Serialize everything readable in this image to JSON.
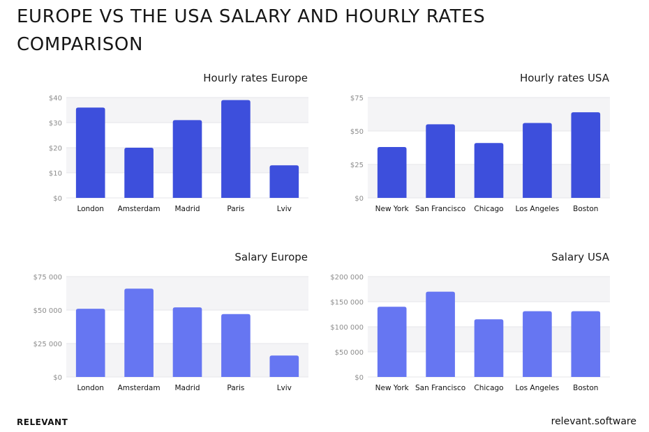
{
  "page": {
    "title": "EUROPE VS THE USA SALARY AND HOURLY RATES COMPARISON"
  },
  "footer": {
    "brand": "RELEVANT",
    "site": "relevant.software"
  },
  "colors": {
    "hourly_bar": "#3d4fdc",
    "salary_bar": "#6676f2",
    "band": "#f4f4f6",
    "gridline": "#e6e6ea",
    "tick_text": "#8c8c8c",
    "category_text": "#111111"
  },
  "chart_data": [
    {
      "type": "bar",
      "title": "Hourly rates Europe",
      "categories": [
        "London",
        "Amsterdam",
        "Madrid",
        "Paris",
        "Lviv"
      ],
      "values": [
        36,
        20,
        31,
        39,
        13
      ],
      "ylim": [
        0,
        40
      ],
      "yticks": [
        0,
        10,
        20,
        30,
        40
      ],
      "ytick_labels": [
        "$0",
        "$10",
        "$20",
        "$30",
        "$40"
      ],
      "color": "hourly_bar",
      "grid": true
    },
    {
      "type": "bar",
      "title": "Hourly rates USA",
      "categories": [
        "New York",
        "San Francisco",
        "Chicago",
        "Los Angeles",
        "Boston"
      ],
      "values": [
        38,
        55,
        41,
        56,
        64
      ],
      "ylim": [
        0,
        75
      ],
      "yticks": [
        0,
        25,
        50,
        75
      ],
      "ytick_labels": [
        "$0",
        "$25",
        "$50",
        "$75"
      ],
      "color": "hourly_bar",
      "grid": true
    },
    {
      "type": "bar",
      "title": "Salary Europe",
      "categories": [
        "London",
        "Amsterdam",
        "Madrid",
        "Paris",
        "Lviv"
      ],
      "values": [
        51000,
        66000,
        52000,
        47000,
        16000
      ],
      "ylim": [
        0,
        75000
      ],
      "yticks": [
        0,
        25000,
        50000,
        75000
      ],
      "ytick_labels": [
        "$0",
        "$25 000",
        "$50 000",
        "$75 000"
      ],
      "color": "salary_bar",
      "grid": true
    },
    {
      "type": "bar",
      "title": "Salary USA",
      "categories": [
        "New York",
        "San Francisco",
        "Chicago",
        "Los Angeles",
        "Boston"
      ],
      "values": [
        140000,
        170000,
        115000,
        131000,
        131000
      ],
      "ylim": [
        0,
        200000
      ],
      "yticks": [
        0,
        50000,
        100000,
        150000,
        200000
      ],
      "ytick_labels": [
        "$0",
        "$50 000",
        "$100 000",
        "$150 000",
        "$200 000"
      ],
      "color": "salary_bar",
      "grid": true
    }
  ]
}
